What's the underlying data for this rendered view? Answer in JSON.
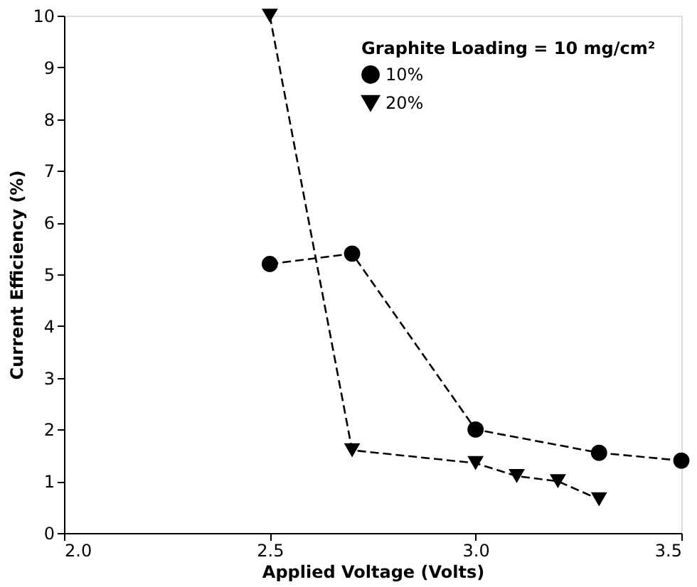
{
  "chart_data": {
    "type": "line",
    "xlabel": "Applied Voltage (Volts)",
    "ylabel": "Current Efficiency (%)",
    "legend_title": "Graphite Loading = 10 mg/cm²",
    "legend": "top right",
    "grid": false,
    "xlim": [
      2.0,
      3.5
    ],
    "xticks": [
      {
        "value": 2,
        "label": "2.0"
      },
      {
        "value": 2.5,
        "label": "2.5"
      },
      {
        "value": 3,
        "label": "3.0"
      },
      {
        "value": 3.5,
        "label": "3.5"
      }
    ],
    "ylim": [
      0,
      10
    ],
    "yticks": [
      0,
      1,
      2,
      3,
      4,
      5,
      6,
      7,
      8,
      9,
      10
    ],
    "series": [
      {
        "name": "10%",
        "color": "#000000",
        "marker": "circle",
        "line_style": "dashed",
        "x": [
          2.5,
          2.7,
          3.0,
          3.3,
          3.5
        ],
        "values": [
          5.2,
          5.4,
          2.0,
          1.55,
          1.4
        ]
      },
      {
        "name": "20%",
        "color": "#000000",
        "marker": "triangle",
        "line_style": "dashed",
        "x": [
          2.5,
          2.7,
          3.0,
          3.1,
          3.2,
          3.3
        ],
        "values": [
          10,
          1.6,
          1.35,
          1.1,
          1.0,
          0.65
        ]
      }
    ]
  }
}
